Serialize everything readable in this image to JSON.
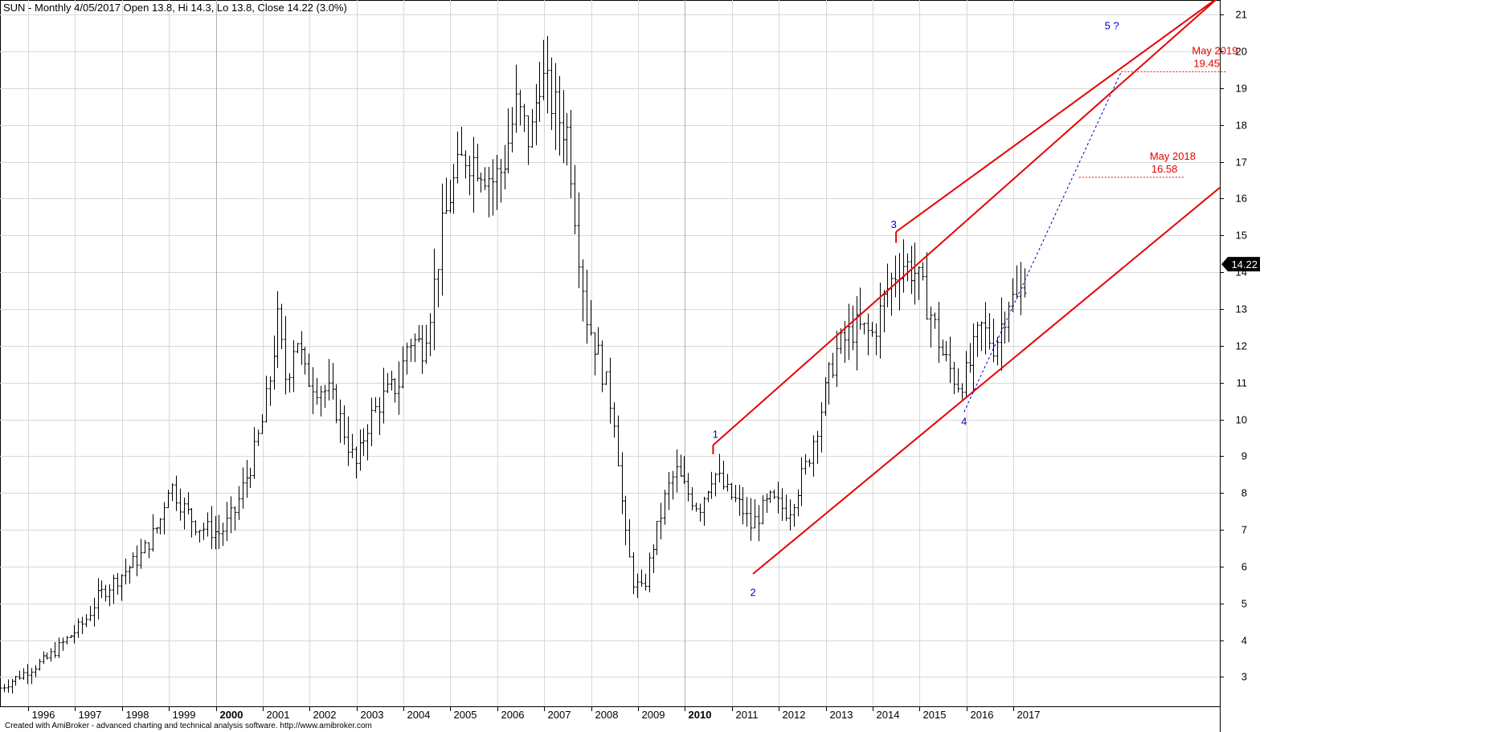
{
  "header": {
    "title": "SUN - Monthly 4/05/2017 Open 13.8, Hi 14.3, Lo 13.8, Close 14.22 (3.0%)"
  },
  "footer": {
    "text": "Created with AmiBroker - advanced charting and technical analysis software. http://www.amibroker.com"
  },
  "colors": {
    "bars": "#000000",
    "channel": "#e60000",
    "projection": "#0000cc",
    "grid": "#d8d8d8",
    "wave_labels": "#0000cc",
    "target_labels": "#e00000"
  },
  "chart_data": {
    "type": "ohlc",
    "title": "SUN - Monthly 4/05/2017 Open 13.8, Hi 14.3, Lo 13.8, Close 14.22 (3.0%)",
    "x_tick_labels": [
      "1996",
      "1997",
      "1998",
      "1999",
      "2000",
      "2001",
      "2002",
      "2003",
      "2004",
      "2005",
      "2006",
      "2007",
      "2008",
      "2009",
      "2010",
      "2011",
      "2012",
      "2013",
      "2014",
      "2015",
      "2016",
      "2017"
    ],
    "bold_x_tick_labels": [
      "2000",
      "2010"
    ],
    "y_tick_labels": [
      "3",
      "4",
      "5",
      "6",
      "7",
      "8",
      "9",
      "10",
      "11",
      "12",
      "13",
      "14",
      "15",
      "16",
      "17",
      "18",
      "19",
      "20",
      "21"
    ],
    "ylim": [
      2.2,
      21.4
    ],
    "xlim": [
      1995.4,
      2021.4
    ],
    "grid": true,
    "last_price_label": "14.22",
    "price_path": [
      [
        1995.4,
        2.7
      ],
      [
        1995.9,
        3.1
      ],
      [
        1996.4,
        3.5
      ],
      [
        1996.8,
        4.0
      ],
      [
        1997.2,
        4.5
      ],
      [
        1997.5,
        5.2
      ],
      [
        1998.0,
        5.8
      ],
      [
        1998.4,
        6.3
      ],
      [
        1998.8,
        7.2
      ],
      [
        1999.0,
        8.3
      ],
      [
        1999.3,
        7.6
      ],
      [
        1999.6,
        7.1
      ],
      [
        2000.1,
        6.9
      ],
      [
        2000.4,
        7.5
      ],
      [
        2000.8,
        9.0
      ],
      [
        2001.0,
        10.0
      ],
      [
        2001.2,
        11.5
      ],
      [
        2001.3,
        12.8
      ],
      [
        2001.5,
        11.0
      ],
      [
        2001.7,
        12.4
      ],
      [
        2001.9,
        11.2
      ],
      [
        2002.4,
        10.7
      ],
      [
        2002.6,
        10.2
      ],
      [
        2002.9,
        9.0
      ],
      [
        2003.0,
        8.7
      ],
      [
        2003.2,
        9.8
      ],
      [
        2003.5,
        10.5
      ],
      [
        2003.9,
        11.0
      ],
      [
        2004.1,
        12.2
      ],
      [
        2004.4,
        12.0
      ],
      [
        2004.6,
        13.2
      ],
      [
        2004.8,
        15.0
      ],
      [
        2005.0,
        16.2
      ],
      [
        2005.3,
        17.2
      ],
      [
        2005.6,
        17.0
      ],
      [
        2005.9,
        16.5
      ],
      [
        2006.1,
        16.8
      ],
      [
        2006.4,
        18.5
      ],
      [
        2006.7,
        17.5
      ],
      [
        2006.9,
        19.4
      ],
      [
        2007.1,
        18.8
      ],
      [
        2007.3,
        18.2
      ],
      [
        2007.5,
        17.8
      ],
      [
        2007.7,
        15.0
      ],
      [
        2007.9,
        12.8
      ],
      [
        2008.2,
        11.5
      ],
      [
        2008.5,
        10.0
      ],
      [
        2008.7,
        7.0
      ],
      [
        2008.9,
        5.6
      ],
      [
        2009.1,
        5.3
      ],
      [
        2009.3,
        6.5
      ],
      [
        2009.6,
        8.0
      ],
      [
        2009.8,
        8.6
      ],
      [
        2010.0,
        8.1
      ],
      [
        2010.3,
        7.6
      ],
      [
        2010.6,
        8.6
      ],
      [
        2010.9,
        8.0
      ],
      [
        2011.2,
        7.6
      ],
      [
        2011.4,
        7.1
      ],
      [
        2011.8,
        7.8
      ],
      [
        2012.2,
        7.5
      ],
      [
        2012.6,
        8.8
      ],
      [
        2012.9,
        10.3
      ],
      [
        2013.2,
        11.8
      ],
      [
        2013.6,
        12.5
      ],
      [
        2014.0,
        12.3
      ],
      [
        2014.3,
        13.5
      ],
      [
        2014.6,
        14.3
      ],
      [
        2014.9,
        14.0
      ],
      [
        2015.2,
        13.0
      ],
      [
        2015.5,
        11.7
      ],
      [
        2015.8,
        11.0
      ],
      [
        2016.0,
        11.2
      ],
      [
        2016.3,
        12.5
      ],
      [
        2016.6,
        12.0
      ],
      [
        2016.9,
        13.3
      ],
      [
        2017.1,
        13.2
      ],
      [
        2017.3,
        14.22
      ]
    ],
    "wave_labels": [
      {
        "text": "1",
        "x": 2010.65,
        "y": 9.5
      },
      {
        "text": "2",
        "x": 2011.45,
        "y": 5.2
      },
      {
        "text": "3",
        "x": 2014.45,
        "y": 15.2
      },
      {
        "text": "4",
        "x": 2015.95,
        "y": 9.85
      },
      {
        "text": "5 ?",
        "x": 2019.1,
        "y": 20.6
      }
    ],
    "channel_lines": [
      {
        "from": [
          2010.6,
          9.3
        ],
        "to": [
          2021.4,
          21.5
        ]
      },
      {
        "from": [
          2011.45,
          5.8
        ],
        "to": [
          2021.4,
          16.3
        ]
      },
      {
        "from": [
          2014.5,
          15.1
        ],
        "to": [
          2021.4,
          21.5
        ]
      }
    ],
    "projection": {
      "from": [
        2015.95,
        10.2
      ],
      "to": [
        2019.3,
        19.45
      ]
    },
    "targets": [
      {
        "date": "May 2018",
        "value": "16.58",
        "x": 2018.4,
        "y": 16.58
      },
      {
        "date": "May 2019",
        "value": "19.45",
        "x": 2019.3,
        "y": 19.45
      }
    ]
  }
}
